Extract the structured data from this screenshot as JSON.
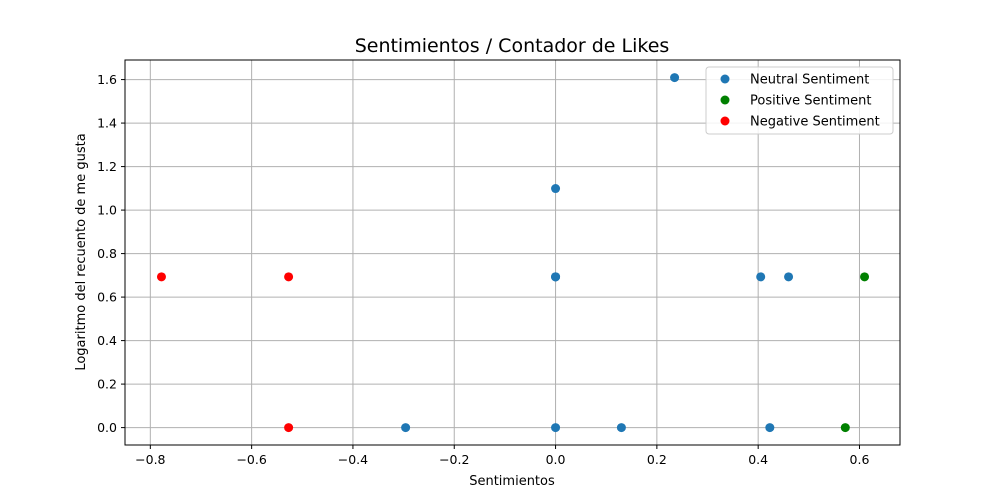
{
  "chart_data": {
    "type": "scatter",
    "title": "Sentimientos / Contador de Likes",
    "xlabel": "Sentimientos",
    "ylabel": "Logaritmo del recuento de me gusta",
    "xlim": [
      -0.85,
      0.68
    ],
    "ylim": [
      -0.08,
      1.69
    ],
    "xticks": [
      -0.8,
      -0.6,
      -0.4,
      -0.2,
      0.0,
      0.2,
      0.4,
      0.6
    ],
    "xtick_labels": [
      "−0.8",
      "−0.6",
      "−0.4",
      "−0.2",
      "0.0",
      "0.2",
      "0.4",
      "0.6"
    ],
    "yticks": [
      0.0,
      0.2,
      0.4,
      0.6,
      0.8,
      1.0,
      1.2,
      1.4,
      1.6
    ],
    "ytick_labels": [
      "0.0",
      "0.2",
      "0.4",
      "0.6",
      "0.8",
      "1.0",
      "1.2",
      "1.4",
      "1.6"
    ],
    "grid": true,
    "legend_position": "top-right",
    "series": [
      {
        "name": "Neutral Sentiment",
        "color": "#1f77b4",
        "points": [
          [
            0.235,
            1.609
          ],
          [
            0.0,
            1.099
          ],
          [
            0.0,
            0.693
          ],
          [
            0.0,
            0.693
          ],
          [
            0.0,
            0.693
          ],
          [
            0.405,
            0.693
          ],
          [
            0.46,
            0.693
          ],
          [
            -0.296,
            0.0
          ],
          [
            0.0,
            0.0
          ],
          [
            0.13,
            0.0
          ],
          [
            0.423,
            0.0
          ]
        ]
      },
      {
        "name": "Positive Sentiment",
        "color": "#008000",
        "points": [
          [
            0.61,
            0.693
          ],
          [
            0.572,
            0.0
          ]
        ]
      },
      {
        "name": "Negative Sentiment",
        "color": "#ff0000",
        "points": [
          [
            -0.778,
            0.693
          ],
          [
            -0.527,
            0.693
          ],
          [
            -0.527,
            0.0
          ]
        ]
      }
    ]
  }
}
